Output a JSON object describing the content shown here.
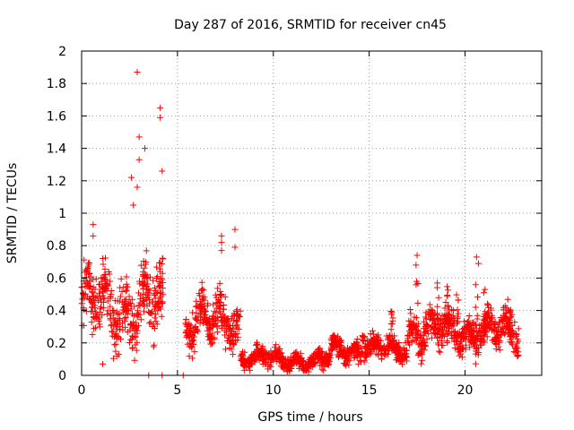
{
  "chart_data": {
    "type": "scatter",
    "title": "Day 287 of 2016, SRMTID for receiver cn45",
    "xlabel": "GPS time / hours",
    "ylabel": "SRMTID / TECUs",
    "xlim": [
      0,
      24
    ],
    "ylim": [
      0,
      2
    ],
    "x_ticks": [
      "0",
      "5",
      "10",
      "15",
      "20"
    ],
    "y_ticks": [
      "0",
      "0.2",
      "0.4",
      "0.6",
      "0.8",
      "1",
      "1.2",
      "1.4",
      "1.6",
      "1.8",
      "2"
    ],
    "grid": true,
    "marker": "+",
    "color": "#ff0000",
    "segments": [
      {
        "x_start": 0.0,
        "x_end": 4.25,
        "level": 0.42,
        "spread": 0.18
      },
      {
        "x_start": 5.4,
        "x_end": 8.3,
        "level": 0.33,
        "spread": 0.12
      },
      {
        "x_start": 8.3,
        "x_end": 10.0,
        "level": 0.11,
        "spread": 0.05
      },
      {
        "x_start": 10.0,
        "x_end": 13.0,
        "level": 0.09,
        "spread": 0.05
      },
      {
        "x_start": 13.0,
        "x_end": 17.0,
        "level": 0.16,
        "spread": 0.06
      },
      {
        "x_start": 17.0,
        "x_end": 22.8,
        "level": 0.27,
        "spread": 0.1
      }
    ],
    "outliers": [
      {
        "x": 2.9,
        "y": 1.87
      },
      {
        "x": 4.1,
        "y": 1.65
      },
      {
        "x": 4.1,
        "y": 1.59
      },
      {
        "x": 3.0,
        "y": 1.47
      },
      {
        "x": 3.3,
        "y": 1.4
      },
      {
        "x": 3.0,
        "y": 1.33
      },
      {
        "x": 4.2,
        "y": 1.26
      },
      {
        "x": 2.6,
        "y": 1.22
      },
      {
        "x": 2.9,
        "y": 1.16
      },
      {
        "x": 2.7,
        "y": 1.05
      },
      {
        "x": 0.6,
        "y": 0.93
      },
      {
        "x": 0.6,
        "y": 0.86
      },
      {
        "x": 8.0,
        "y": 0.9
      },
      {
        "x": 7.3,
        "y": 0.86
      },
      {
        "x": 7.3,
        "y": 0.82
      },
      {
        "x": 8.0,
        "y": 0.79
      },
      {
        "x": 7.3,
        "y": 0.77
      },
      {
        "x": 17.5,
        "y": 0.74
      },
      {
        "x": 20.6,
        "y": 0.73
      },
      {
        "x": 20.7,
        "y": 0.69
      },
      {
        "x": 5.3,
        "y": 0.0
      },
      {
        "x": 3.5,
        "y": 0.0
      },
      {
        "x": 4.2,
        "y": 0.0
      },
      {
        "x": 1.1,
        "y": 0.07
      }
    ]
  }
}
